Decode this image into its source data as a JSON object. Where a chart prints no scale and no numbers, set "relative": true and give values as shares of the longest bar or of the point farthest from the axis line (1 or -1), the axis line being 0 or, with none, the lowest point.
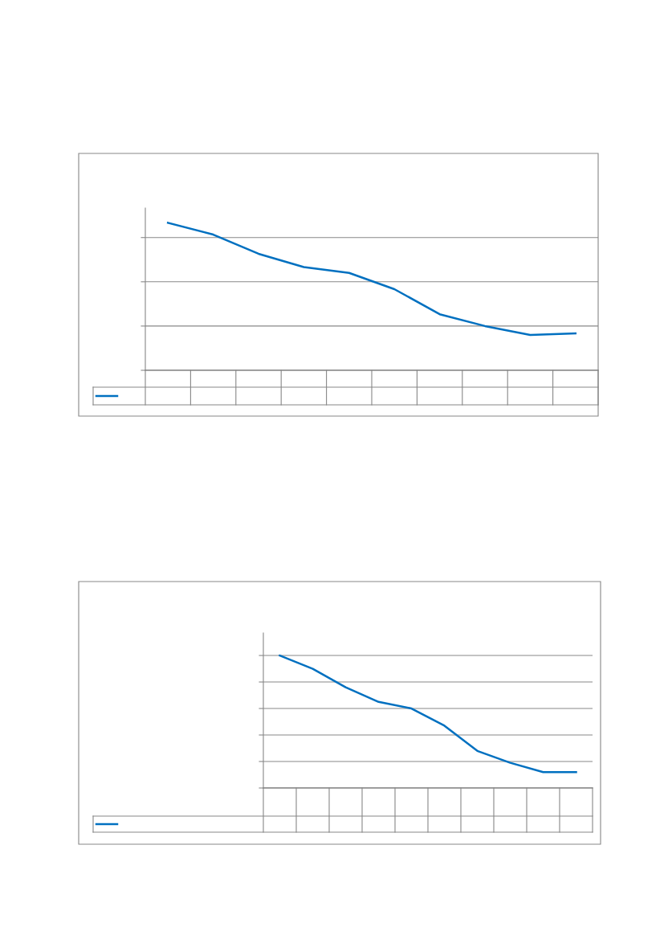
{
  "chart_data": [
    {
      "type": "line",
      "relative": true,
      "categories": [
        null,
        null,
        null,
        null,
        null,
        null,
        null,
        null,
        null,
        null
      ],
      "grid": "y",
      "series": [
        {
          "color": "#0070c0",
          "values": [
            1,
            0.92,
            0.79,
            0.7,
            0.66,
            0.55,
            0.38,
            0.3,
            0.24,
            0.25
          ]
        }
      ]
    },
    {
      "type": "line",
      "relative": true,
      "categories": [
        null,
        null,
        null,
        null,
        null,
        null,
        null,
        null,
        null,
        null
      ],
      "grid": "y",
      "series": [
        {
          "color": "#0070c0",
          "values": [
            1,
            0.9,
            0.76,
            0.65,
            0.6,
            0.47,
            0.28,
            0.19,
            0.12,
            0.12
          ]
        }
      ]
    }
  ]
}
